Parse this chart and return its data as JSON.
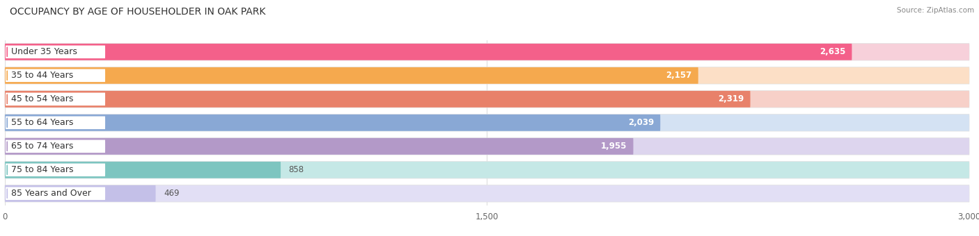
{
  "title": "OCCUPANCY BY AGE OF HOUSEHOLDER IN OAK PARK",
  "source": "Source: ZipAtlas.com",
  "categories": [
    "Under 35 Years",
    "35 to 44 Years",
    "45 to 54 Years",
    "55 to 64 Years",
    "65 to 74 Years",
    "75 to 84 Years",
    "85 Years and Over"
  ],
  "values": [
    2635,
    2157,
    2319,
    2039,
    1955,
    858,
    469
  ],
  "bar_colors": [
    "#F4608A",
    "#F5A94E",
    "#E8816A",
    "#89A8D5",
    "#B399C8",
    "#7DC5C0",
    "#C4C0E8"
  ],
  "bar_bg_colors": [
    "#F7D0DA",
    "#FCDFC6",
    "#F7D0C8",
    "#D4E2F3",
    "#DDD5EE",
    "#C5E8E6",
    "#E2DFF5"
  ],
  "xlim": [
    0,
    3000
  ],
  "xticks": [
    0,
    1500,
    3000
  ],
  "background_color": "#ffffff",
  "title_fontsize": 10,
  "label_fontsize": 9,
  "value_fontsize": 8.5
}
